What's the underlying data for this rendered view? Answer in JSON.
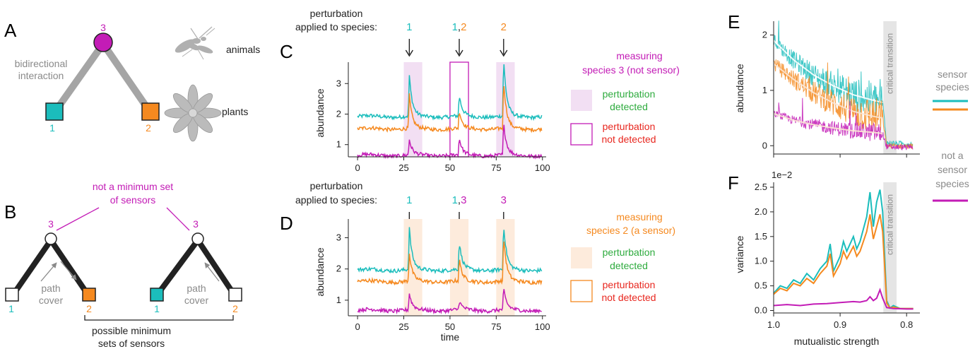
{
  "colors": {
    "species1": "#1bbdbc",
    "species2": "#f5891f",
    "species3": "#c31cb6",
    "detected": "#2eab3e",
    "not_detected": "#e8271f",
    "gray": "#9b9b9b",
    "black": "#222222",
    "shade": "#e5e5e5",
    "pink_fill": "#f2dff3",
    "orange_fill": "#fdebdc"
  },
  "panelA": {
    "letter": "A",
    "interaction_label_1": "bidirectional",
    "interaction_label_2": "interaction",
    "animals_label": "animals",
    "plants_label": "plants",
    "node1": "1",
    "node2": "2",
    "node3": "3",
    "icons": [
      "insect-icon",
      "flower-icon"
    ]
  },
  "panelB": {
    "letter": "B",
    "not_min_line1": "not a minimum set",
    "not_min_line2": "of sensors",
    "path_cover_1": "path",
    "path_cover_2": "cover",
    "possible_line1": "possible minimum",
    "possible_line2": "sets of sensors",
    "node1": "1",
    "node2": "2",
    "node3": "3"
  },
  "panelC": {
    "letter": "C",
    "pert_line1": "perturbation",
    "pert_line2": "applied to species:",
    "marks": [
      {
        "parts": [
          {
            "t": "1",
            "c": "species1"
          }
        ]
      },
      {
        "parts": [
          {
            "t": "1",
            "c": "species1"
          },
          {
            "t": ",",
            "c": "black"
          },
          {
            "t": "2",
            "c": "species2"
          }
        ]
      },
      {
        "parts": [
          {
            "t": "2",
            "c": "species2"
          }
        ]
      }
    ],
    "measure_line1": "measuring",
    "measure_line2": "species 3 (not sensor)",
    "legend_det_1": "perturbation",
    "legend_det_2": "detected",
    "legend_not_1": "perturbation",
    "legend_not_2": "not detected",
    "ylabel": "abundance"
  },
  "panelD": {
    "letter": "D",
    "pert_line1": "perturbation",
    "pert_line2": "applied to species:",
    "marks": [
      {
        "parts": [
          {
            "t": "1",
            "c": "species1"
          }
        ]
      },
      {
        "parts": [
          {
            "t": "1",
            "c": "species1"
          },
          {
            "t": ",",
            "c": "black"
          },
          {
            "t": "3",
            "c": "species3"
          }
        ]
      },
      {
        "parts": [
          {
            "t": "3",
            "c": "species3"
          }
        ]
      }
    ],
    "measure_line1": "measuring",
    "measure_line2": "species 2 (a sensor)",
    "legend_det_1": "perturbation",
    "legend_det_2": "detected",
    "legend_not_1": "perturbation",
    "legend_not_2": "not detected",
    "ylabel": "abundance",
    "xlabel": "time"
  },
  "panelE": {
    "letter": "E",
    "ylabel": "abundance",
    "critical": "critical transition",
    "legend_sensor_1": "sensor",
    "legend_sensor_2": "species",
    "legend_not_1": "not a",
    "legend_not_2": "sensor",
    "legend_not_3": "species"
  },
  "panelF": {
    "letter": "F",
    "ylabel": "variance",
    "xlabel": "mutualistic strength",
    "critical": "critical transition",
    "scale_label": "1e−2"
  },
  "chart_data": [
    {
      "type": "line",
      "panel": "C",
      "xlabel": "",
      "ylabel": "abundance",
      "xlim": [
        -5,
        102
      ],
      "ylim": [
        0.6,
        3.7
      ],
      "x_ticks": [
        0,
        25,
        50,
        75,
        100
      ],
      "y_ticks": [
        1,
        2,
        3
      ],
      "perturbation_times": [
        28,
        55,
        79
      ],
      "detected_windows": [
        [
          25,
          35
        ],
        [
          75,
          85
        ]
      ],
      "not_detected_windows": [
        [
          50,
          60
        ]
      ],
      "series": [
        {
          "name": "1",
          "color": "species1",
          "baseline": 1.92,
          "peaks": [
            3.25,
            2.6,
            3.8
          ]
        },
        {
          "name": "2",
          "color": "species2",
          "baseline": 1.52,
          "peaks": [
            2.6,
            2.1,
            3.1
          ]
        },
        {
          "name": "3",
          "color": "species3",
          "baseline": 0.65,
          "peaks": [
            1.15,
            1.2,
            1.7
          ]
        }
      ]
    },
    {
      "type": "line",
      "panel": "D",
      "xlabel": "time",
      "ylabel": "abundance",
      "xlim": [
        -5,
        102
      ],
      "ylim": [
        0.5,
        3.6
      ],
      "x_ticks": [
        0,
        25,
        50,
        75,
        100
      ],
      "y_ticks": [
        1,
        2,
        3
      ],
      "perturbation_times": [
        28,
        55,
        79
      ],
      "detected_windows": [
        [
          25,
          35
        ],
        [
          50,
          60
        ],
        [
          75,
          85
        ]
      ],
      "not_detected_windows": [],
      "series": [
        {
          "name": "1",
          "color": "species1",
          "baseline": 1.97,
          "peaks": [
            3.3,
            2.85,
            3.45
          ]
        },
        {
          "name": "2",
          "color": "species2",
          "baseline": 1.6,
          "peaks": [
            2.5,
            2.3,
            3.05
          ]
        },
        {
          "name": "3",
          "color": "species3",
          "baseline": 0.68,
          "peaks": [
            1.2,
            0.95,
            1.35
          ]
        }
      ]
    },
    {
      "type": "line",
      "panel": "E",
      "xlabel": "",
      "ylabel": "abundance",
      "x_reversed": true,
      "xlim": [
        1.0,
        0.78
      ],
      "ylim": [
        -0.15,
        2.25
      ],
      "y_ticks": [
        0,
        1,
        2
      ],
      "critical_range": [
        0.835,
        0.815
      ],
      "series": [
        {
          "name": "sensor species",
          "color": "species1",
          "x": [
            1.0,
            0.97,
            0.94,
            0.91,
            0.88,
            0.85,
            0.836,
            0.83,
            0.8
          ],
          "y": [
            1.9,
            1.55,
            1.28,
            1.08,
            0.92,
            0.82,
            0.78,
            0.05,
            0.03
          ]
        },
        {
          "name": "sensor species",
          "color": "species2",
          "x": [
            1.0,
            0.97,
            0.94,
            0.91,
            0.88,
            0.85,
            0.836,
            0.83,
            0.8
          ],
          "y": [
            1.48,
            1.2,
            0.96,
            0.77,
            0.62,
            0.53,
            0.5,
            0.0,
            -0.01
          ]
        },
        {
          "name": "not a sensor species",
          "color": "species3",
          "x": [
            1.0,
            0.97,
            0.94,
            0.91,
            0.88,
            0.85,
            0.836,
            0.83,
            0.8
          ],
          "y": [
            0.58,
            0.46,
            0.38,
            0.32,
            0.27,
            0.24,
            0.22,
            -0.02,
            -0.03
          ]
        }
      ]
    },
    {
      "type": "line",
      "panel": "F",
      "xlabel": "mutualistic strength",
      "ylabel": "variance",
      "x_reversed": true,
      "xlim": [
        1.0,
        0.78
      ],
      "ylim": [
        -0.05,
        2.6
      ],
      "y_scale": "1e-2",
      "x_ticks": [
        1.0,
        0.9,
        0.8
      ],
      "x_tick_labels": [
        "1.0",
        "0.9",
        "0.8"
      ],
      "y_ticks": [
        0.0,
        0.5,
        1.0,
        1.5,
        2.0,
        2.5
      ],
      "y_tick_labels": [
        "0.0",
        "0.5",
        "1.0",
        "1.5",
        "2.0",
        "2.5"
      ],
      "critical_range": [
        0.835,
        0.815
      ],
      "series": [
        {
          "name": "sensor species",
          "color": "species1",
          "x": [
            1.0,
            0.99,
            0.98,
            0.97,
            0.96,
            0.95,
            0.94,
            0.93,
            0.92,
            0.915,
            0.91,
            0.9,
            0.895,
            0.89,
            0.88,
            0.875,
            0.87,
            0.865,
            0.86,
            0.855,
            0.85,
            0.845,
            0.84,
            0.836,
            0.83,
            0.825,
            0.82,
            0.81,
            0.8,
            0.79
          ],
          "y": [
            0.35,
            0.5,
            0.45,
            0.62,
            0.55,
            0.75,
            0.62,
            0.85,
            1.0,
            1.35,
            0.8,
            1.1,
            1.4,
            1.2,
            1.5,
            1.25,
            1.4,
            1.65,
            1.9,
            2.4,
            1.7,
            2.2,
            2.45,
            2.0,
            0.2,
            0.05,
            0.1,
            0.04,
            0.04,
            0.04
          ]
        },
        {
          "name": "sensor species",
          "color": "species2",
          "x": [
            1.0,
            0.99,
            0.98,
            0.97,
            0.96,
            0.95,
            0.94,
            0.93,
            0.92,
            0.915,
            0.91,
            0.9,
            0.895,
            0.89,
            0.88,
            0.875,
            0.87,
            0.865,
            0.86,
            0.855,
            0.85,
            0.845,
            0.84,
            0.836,
            0.83,
            0.825,
            0.82,
            0.81,
            0.8,
            0.79
          ],
          "y": [
            0.33,
            0.45,
            0.4,
            0.55,
            0.5,
            0.65,
            0.55,
            0.75,
            0.9,
            1.15,
            0.7,
            0.95,
            1.2,
            1.05,
            1.3,
            1.1,
            1.2,
            1.4,
            1.6,
            1.95,
            1.45,
            1.7,
            1.95,
            1.6,
            0.15,
            0.05,
            0.07,
            0.04,
            0.04,
            0.04
          ]
        },
        {
          "name": "not a sensor species",
          "color": "species3",
          "x": [
            1.0,
            0.98,
            0.96,
            0.94,
            0.92,
            0.9,
            0.88,
            0.87,
            0.86,
            0.855,
            0.85,
            0.845,
            0.84,
            0.836,
            0.83,
            0.82,
            0.8,
            0.79
          ],
          "y": [
            0.1,
            0.12,
            0.1,
            0.13,
            0.14,
            0.16,
            0.18,
            0.17,
            0.2,
            0.28,
            0.2,
            0.25,
            0.42,
            0.25,
            0.06,
            0.04,
            0.03,
            0.03
          ]
        }
      ]
    }
  ]
}
